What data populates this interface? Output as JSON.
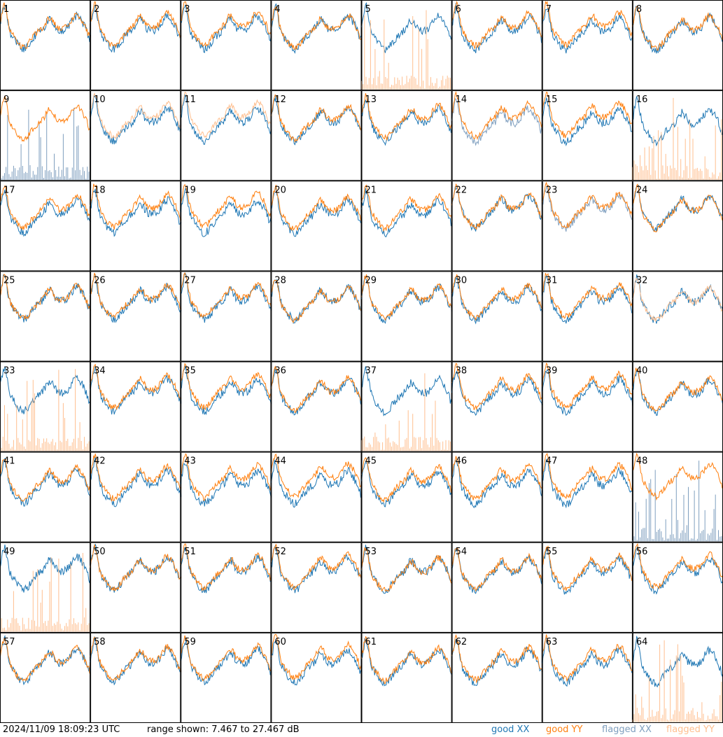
{
  "footer": {
    "timestamp": "2024/11/09 18:09:23 UTC",
    "range_text": "range shown: 7.467 to 27.467 dB",
    "legend": [
      {
        "label": "good XX",
        "color": "#1f77b4"
      },
      {
        "label": "good YY",
        "color": "#ff7f0e"
      },
      {
        "label": "flagged XX",
        "color": "#7f9fbf"
      },
      {
        "label": "flagged YY",
        "color": "#ffbf8f"
      }
    ]
  },
  "chart_data": {
    "type": "line",
    "grid": {
      "rows": 8,
      "cols": 8
    },
    "ylim": [
      7.467,
      27.467
    ],
    "y_unit": "dB",
    "colors": {
      "good_xx": "#1f77b4",
      "good_yy": "#ff7f0e",
      "flagged_xx": "#7f9fbf",
      "flagged_yy": "#ffbf8f"
    },
    "panels": [
      {
        "label": "1",
        "xx_flagged": false,
        "yy_flagged": false
      },
      {
        "label": "2",
        "xx_flagged": false,
        "yy_flagged": false
      },
      {
        "label": "3",
        "xx_flagged": false,
        "yy_flagged": false
      },
      {
        "label": "4",
        "xx_flagged": false,
        "yy_flagged": false
      },
      {
        "label": "5",
        "xx_flagged": false,
        "yy_flagged": true
      },
      {
        "label": "6",
        "xx_flagged": false,
        "yy_flagged": false
      },
      {
        "label": "7",
        "xx_flagged": false,
        "yy_flagged": false
      },
      {
        "label": "8",
        "xx_flagged": false,
        "yy_flagged": false
      },
      {
        "label": "9",
        "xx_flagged": true,
        "yy_flagged": false
      },
      {
        "label": "10",
        "xx_flagged": false,
        "yy_flagged": true
      },
      {
        "label": "11",
        "xx_flagged": false,
        "yy_flagged": true
      },
      {
        "label": "12",
        "xx_flagged": false,
        "yy_flagged": false
      },
      {
        "label": "13",
        "xx_flagged": false,
        "yy_flagged": false
      },
      {
        "label": "14",
        "xx_flagged": true,
        "yy_flagged": false
      },
      {
        "label": "15",
        "xx_flagged": false,
        "yy_flagged": false
      },
      {
        "label": "16",
        "xx_flagged": false,
        "yy_flagged": true
      },
      {
        "label": "17",
        "xx_flagged": false,
        "yy_flagged": false
      },
      {
        "label": "18",
        "xx_flagged": false,
        "yy_flagged": false
      },
      {
        "label": "19",
        "xx_flagged": false,
        "yy_flagged": false
      },
      {
        "label": "20",
        "xx_flagged": false,
        "yy_flagged": false
      },
      {
        "label": "21",
        "xx_flagged": false,
        "yy_flagged": false
      },
      {
        "label": "22",
        "xx_flagged": false,
        "yy_flagged": false
      },
      {
        "label": "23",
        "xx_flagged": true,
        "yy_flagged": false
      },
      {
        "label": "24",
        "xx_flagged": false,
        "yy_flagged": false
      },
      {
        "label": "25",
        "xx_flagged": false,
        "yy_flagged": false
      },
      {
        "label": "26",
        "xx_flagged": false,
        "yy_flagged": false
      },
      {
        "label": "27",
        "xx_flagged": false,
        "yy_flagged": false
      },
      {
        "label": "28",
        "xx_flagged": false,
        "yy_flagged": false
      },
      {
        "label": "29",
        "xx_flagged": false,
        "yy_flagged": false
      },
      {
        "label": "30",
        "xx_flagged": false,
        "yy_flagged": false
      },
      {
        "label": "31",
        "xx_flagged": false,
        "yy_flagged": false
      },
      {
        "label": "32",
        "xx_flagged": false,
        "yy_flagged": true
      },
      {
        "label": "33",
        "xx_flagged": false,
        "yy_flagged": true
      },
      {
        "label": "34",
        "xx_flagged": false,
        "yy_flagged": false
      },
      {
        "label": "35",
        "xx_flagged": false,
        "yy_flagged": false
      },
      {
        "label": "36",
        "xx_flagged": false,
        "yy_flagged": false
      },
      {
        "label": "37",
        "xx_flagged": false,
        "yy_flagged": true
      },
      {
        "label": "38",
        "xx_flagged": false,
        "yy_flagged": false
      },
      {
        "label": "39",
        "xx_flagged": false,
        "yy_flagged": false
      },
      {
        "label": "40",
        "xx_flagged": false,
        "yy_flagged": false
      },
      {
        "label": "41",
        "xx_flagged": false,
        "yy_flagged": false
      },
      {
        "label": "42",
        "xx_flagged": false,
        "yy_flagged": false
      },
      {
        "label": "43",
        "xx_flagged": false,
        "yy_flagged": false
      },
      {
        "label": "44",
        "xx_flagged": false,
        "yy_flagged": false
      },
      {
        "label": "45",
        "xx_flagged": false,
        "yy_flagged": false
      },
      {
        "label": "46",
        "xx_flagged": false,
        "yy_flagged": false
      },
      {
        "label": "47",
        "xx_flagged": false,
        "yy_flagged": false
      },
      {
        "label": "48",
        "xx_flagged": true,
        "yy_flagged": false
      },
      {
        "label": "49",
        "xx_flagged": false,
        "yy_flagged": true
      },
      {
        "label": "50",
        "xx_flagged": false,
        "yy_flagged": false
      },
      {
        "label": "51",
        "xx_flagged": false,
        "yy_flagged": false
      },
      {
        "label": "52",
        "xx_flagged": false,
        "yy_flagged": false
      },
      {
        "label": "53",
        "xx_flagged": false,
        "yy_flagged": false
      },
      {
        "label": "54",
        "xx_flagged": false,
        "yy_flagged": false
      },
      {
        "label": "55",
        "xx_flagged": false,
        "yy_flagged": false
      },
      {
        "label": "56",
        "xx_flagged": false,
        "yy_flagged": false
      },
      {
        "label": "57",
        "xx_flagged": false,
        "yy_flagged": false
      },
      {
        "label": "58",
        "xx_flagged": false,
        "yy_flagged": false
      },
      {
        "label": "59",
        "xx_flagged": false,
        "yy_flagged": false
      },
      {
        "label": "60",
        "xx_flagged": false,
        "yy_flagged": false
      },
      {
        "label": "61",
        "xx_flagged": false,
        "yy_flagged": false
      },
      {
        "label": "62",
        "xx_flagged": false,
        "yy_flagged": false
      },
      {
        "label": "63",
        "xx_flagged": false,
        "yy_flagged": false
      },
      {
        "label": "64",
        "xx_flagged": false,
        "yy_flagged": true
      }
    ]
  }
}
